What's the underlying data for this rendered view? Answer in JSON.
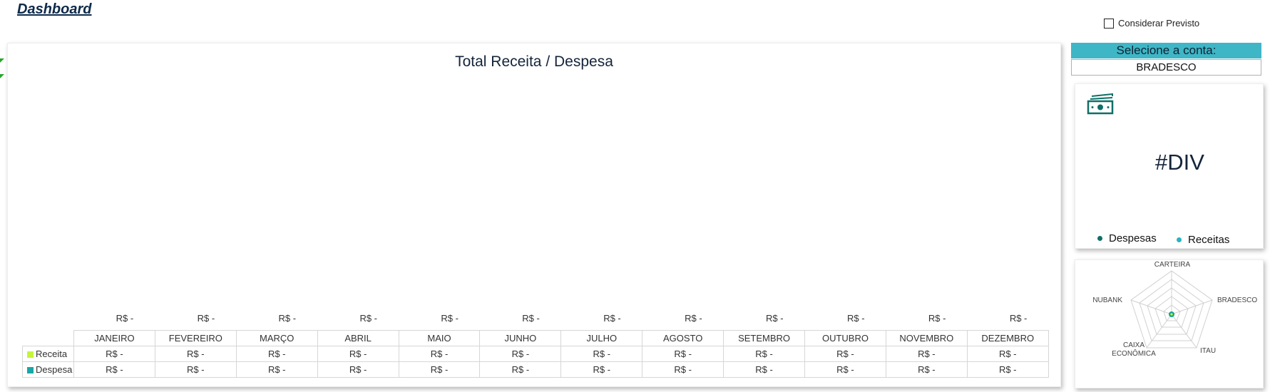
{
  "page": {
    "title": "Dashboard"
  },
  "toggle": {
    "label": "Considerar Previsto",
    "checked": false
  },
  "chart": {
    "title": "Total Receita / Despesa",
    "totals": [
      "R$ -",
      "R$ -",
      "R$ -",
      "R$ -",
      "R$ -",
      "R$ -",
      "R$ -",
      "R$ -",
      "R$ -",
      "R$ -",
      "R$ -",
      "R$ -"
    ],
    "months": [
      "JANEIRO",
      "FEVEREIRO",
      "MARÇO",
      "ABRIL",
      "MAIO",
      "JUNHO",
      "JULHO",
      "AGOSTO",
      "SETEMBRO",
      "OUTUBRO",
      "NOVEMBRO",
      "DEZEMBRO"
    ],
    "rows": [
      {
        "label": "Receita",
        "color": "#c4f53c",
        "values": [
          "R$ -",
          "R$ -",
          "R$ -",
          "R$ -",
          "R$ -",
          "R$ -",
          "R$ -",
          "R$ -",
          "R$ -",
          "R$ -",
          "R$ -",
          "R$ -"
        ]
      },
      {
        "label": "Despesa",
        "color": "#1aa6a6",
        "values": [
          "R$ -",
          "R$ -",
          "R$ -",
          "R$ -",
          "R$ -",
          "R$ -",
          "R$ -",
          "R$ -",
          "R$ -",
          "R$ -",
          "R$ -",
          "R$ -"
        ]
      }
    ]
  },
  "account": {
    "header": "Selecione a conta:",
    "selected": "BRADESCO"
  },
  "kpi": {
    "icon": "money-icon",
    "value": "#DIV",
    "legend": [
      {
        "label": "Despesas",
        "color": "#0f6f66"
      },
      {
        "label": "Receitas",
        "color": "#2bb3c0"
      }
    ]
  },
  "radar": {
    "axes": [
      "CARTEIRA",
      "BRADESCO",
      "ITAU",
      "CAIXA",
      "ECONÔMICA",
      "NUBANK"
    ],
    "point_color": "#1aa38f",
    "accent_color": "#c4f53c"
  }
}
